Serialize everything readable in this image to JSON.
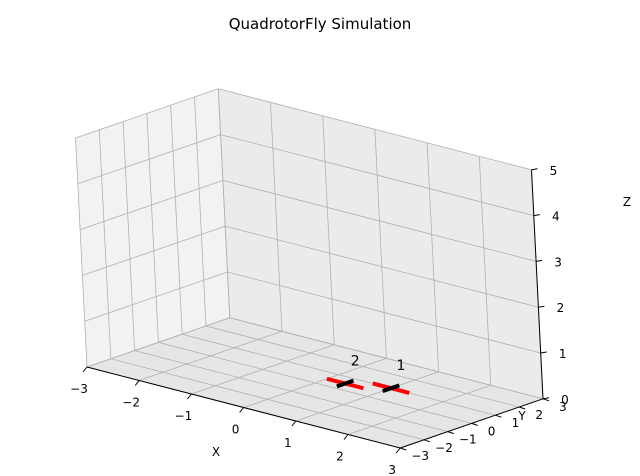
{
  "chart_data": {
    "type": "3d-line",
    "title": "QuadrotorFly Simulation",
    "xlabel": "X",
    "ylabel": "Y",
    "zlabel": "Z",
    "xlim": [
      -3,
      3
    ],
    "ylim": [
      -3,
      3
    ],
    "zlim": [
      0,
      5
    ],
    "x_ticks": [
      -3,
      -2,
      -1,
      0,
      1,
      2,
      3
    ],
    "y_ticks": [
      -3,
      -2,
      -1,
      0,
      1,
      2,
      3
    ],
    "z_ticks": [
      0,
      1,
      2,
      3,
      4,
      5
    ],
    "grid": true,
    "quadrotors": [
      {
        "label": "1",
        "center": [
          1.0,
          1.0,
          0
        ],
        "arm_x_color": "#000000",
        "arm_y_color": "#ff0000",
        "arm_half_length": 0.35
      },
      {
        "label": "2",
        "center": [
          0.35,
          0.5,
          0
        ],
        "arm_x_color": "#000000",
        "arm_y_color": "#ff0000",
        "arm_half_length": 0.35
      }
    ]
  },
  "colors": {
    "pane_left": "#f2f2f2",
    "pane_right": "#ebebeb",
    "pane_floor": "#e6e6e6",
    "grid": "#b0b0b0",
    "axis": "#000000"
  }
}
